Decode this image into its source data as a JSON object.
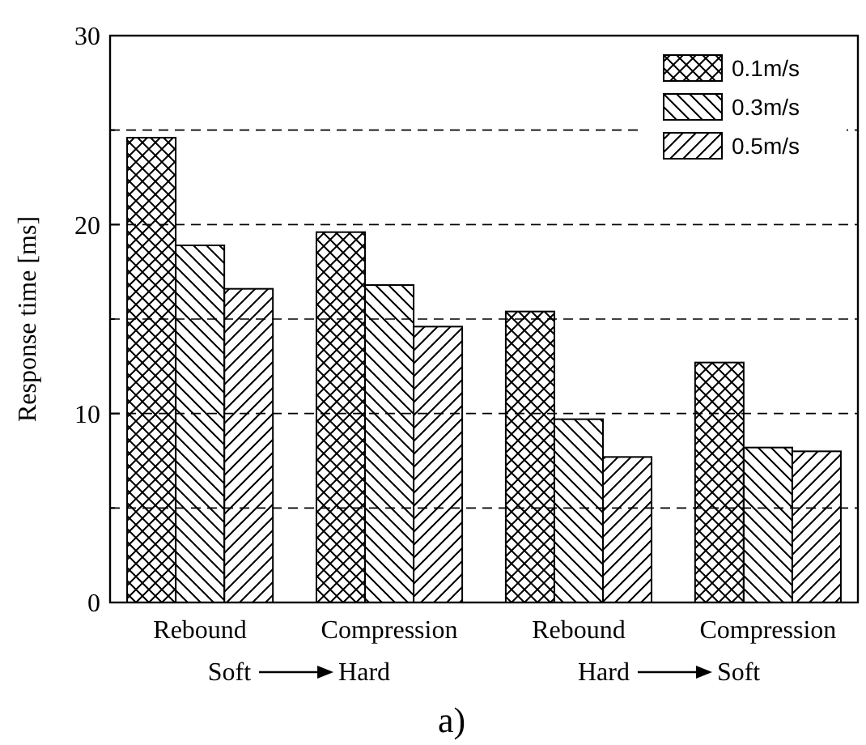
{
  "chart_data": {
    "type": "bar",
    "ylabel": "Response time [ms]",
    "categories": [
      "Rebound",
      "Compression",
      "Rebound",
      "Compression"
    ],
    "series": [
      {
        "name": "0.1m/s",
        "color": "#000000",
        "values": [
          24.6,
          19.6,
          15.4,
          12.7
        ]
      },
      {
        "name": "0.3m/s",
        "color": "#000000",
        "values": [
          18.9,
          16.8,
          9.7,
          8.2
        ]
      },
      {
        "name": "0.5m/s",
        "color": "#000000",
        "values": [
          16.6,
          14.6,
          7.7,
          8.0
        ]
      }
    ],
    "ylim": [
      0,
      30
    ],
    "yticks": [
      0,
      {
        "value": 5,
        "label": null
      },
      10,
      {
        "value": 15,
        "label": null
      },
      20,
      {
        "value": 25,
        "label": null
      },
      30
    ],
    "grid": "y",
    "legend": "top right",
    "annotations": [
      "Soft",
      "Hard",
      "Hard",
      "Soft",
      "a)"
    ]
  }
}
